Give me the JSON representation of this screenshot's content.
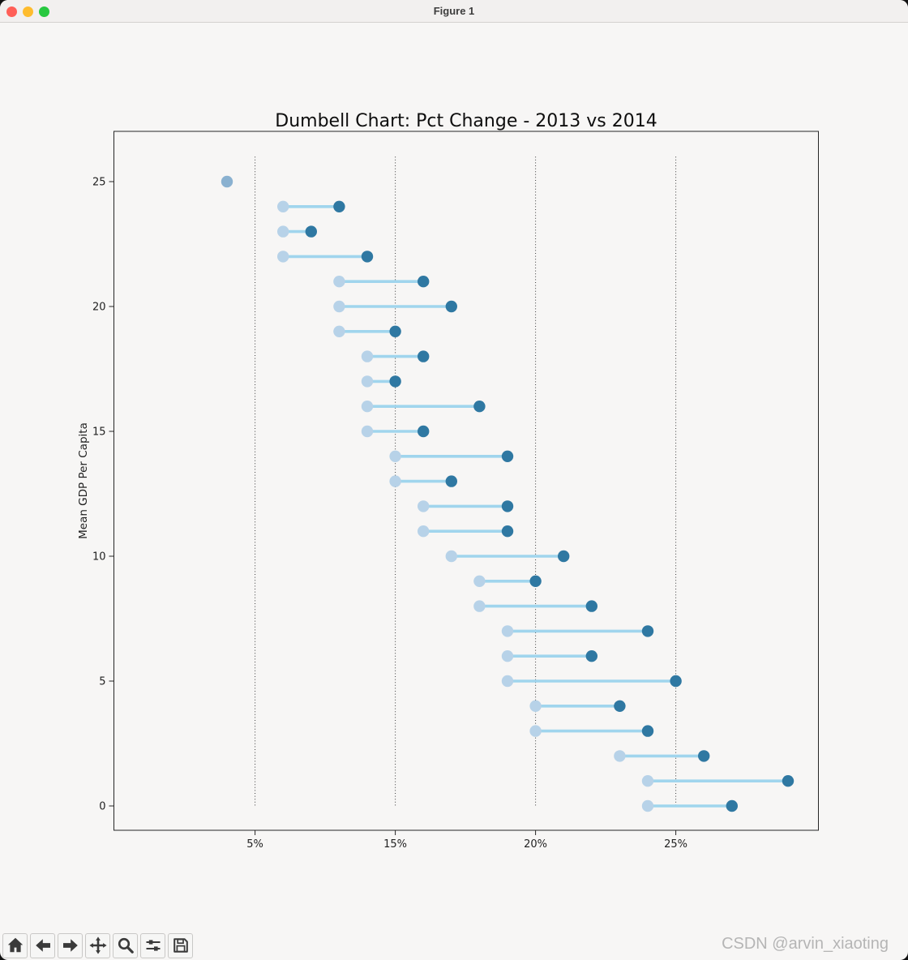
{
  "window": {
    "title": "Figure 1",
    "traffic_lights": [
      {
        "name": "close",
        "color": "#ff5f57"
      },
      {
        "name": "minimize",
        "color": "#febc2e"
      },
      {
        "name": "maximize",
        "color": "#28c840"
      }
    ]
  },
  "chart_data": {
    "type": "scatter",
    "subtype": "dumbbell",
    "title": "Dumbell Chart: Pct Change - 2013 vs 2014",
    "ylabel": "Mean GDP Per Capita",
    "xlabel": "",
    "grid": "vertical-dotted",
    "legend_position": "none",
    "x_categories": [
      "4%",
      "5%",
      "7%",
      "9%",
      "11%",
      "13%",
      "15%",
      "16%",
      "17%",
      "18%",
      "19%",
      "20%",
      "21%",
      "22%",
      "23%",
      "24%",
      "25%",
      "26%",
      "27%",
      "28%",
      "29%"
    ],
    "x_tick_indices": [
      1,
      6,
      11,
      16
    ],
    "x_tick_labels": [
      "5%",
      "15%",
      "20%",
      "25%"
    ],
    "y_ticks": [
      0,
      5,
      10,
      15,
      20,
      25
    ],
    "ylim": [
      -1,
      26.5
    ],
    "colors": {
      "line": "#a0d5ed",
      "y2013": "#b7d2e8",
      "y2014": "#2f78a2",
      "overlap": "#8ab1d0"
    },
    "rows": [
      {
        "y": 25,
        "pct_2013": "4%",
        "pct_2014": "4%"
      },
      {
        "y": 24,
        "pct_2013": "7%",
        "pct_2014": "11%"
      },
      {
        "y": 23,
        "pct_2013": "7%",
        "pct_2014": "9%"
      },
      {
        "y": 22,
        "pct_2013": "7%",
        "pct_2014": "13%"
      },
      {
        "y": 21,
        "pct_2013": "11%",
        "pct_2014": "16%"
      },
      {
        "y": 20,
        "pct_2013": "11%",
        "pct_2014": "17%"
      },
      {
        "y": 19,
        "pct_2013": "11%",
        "pct_2014": "15%"
      },
      {
        "y": 18,
        "pct_2013": "13%",
        "pct_2014": "16%"
      },
      {
        "y": 17,
        "pct_2013": "13%",
        "pct_2014": "15%"
      },
      {
        "y": 16,
        "pct_2013": "13%",
        "pct_2014": "18%"
      },
      {
        "y": 15,
        "pct_2013": "13%",
        "pct_2014": "16%"
      },
      {
        "y": 14,
        "pct_2013": "15%",
        "pct_2014": "19%"
      },
      {
        "y": 13,
        "pct_2013": "15%",
        "pct_2014": "17%"
      },
      {
        "y": 12,
        "pct_2013": "16%",
        "pct_2014": "19%"
      },
      {
        "y": 11,
        "pct_2013": "16%",
        "pct_2014": "19%"
      },
      {
        "y": 10,
        "pct_2013": "17%",
        "pct_2014": "21%"
      },
      {
        "y": 9,
        "pct_2013": "18%",
        "pct_2014": "20%"
      },
      {
        "y": 8,
        "pct_2013": "18%",
        "pct_2014": "22%"
      },
      {
        "y": 7,
        "pct_2013": "19%",
        "pct_2014": "24%"
      },
      {
        "y": 6,
        "pct_2013": "19%",
        "pct_2014": "22%"
      },
      {
        "y": 5,
        "pct_2013": "19%",
        "pct_2014": "25%"
      },
      {
        "y": 4,
        "pct_2013": "20%",
        "pct_2014": "23%"
      },
      {
        "y": 3,
        "pct_2013": "20%",
        "pct_2014": "24%"
      },
      {
        "y": 2,
        "pct_2013": "23%",
        "pct_2014": "26%"
      },
      {
        "y": 1,
        "pct_2013": "24%",
        "pct_2014": "29%"
      },
      {
        "y": 0,
        "pct_2013": "24%",
        "pct_2014": "27%"
      }
    ]
  },
  "toolbar": {
    "buttons": [
      {
        "name": "home"
      },
      {
        "name": "back"
      },
      {
        "name": "forward"
      },
      {
        "name": "pan"
      },
      {
        "name": "zoom"
      },
      {
        "name": "configure-subplots"
      },
      {
        "name": "save"
      }
    ]
  },
  "watermark": "CSDN @arvin_xiaoting"
}
